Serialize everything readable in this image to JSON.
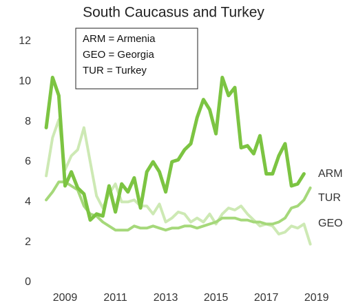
{
  "chart_data": {
    "type": "line",
    "title": "South Caucasus and Turkey",
    "legend_box": [
      "ARM  = Armenia",
      "GEO  = Georgia",
      "TUR  = Turkey"
    ],
    "x": [
      2008.25,
      2008.5,
      2008.75,
      2009,
      2009.25,
      2009.5,
      2009.75,
      2010,
      2010.25,
      2010.5,
      2010.75,
      2011,
      2011.25,
      2011.5,
      2011.75,
      2012,
      2012.25,
      2012.5,
      2012.75,
      2013,
      2013.25,
      2013.5,
      2013.75,
      2014,
      2014.25,
      2014.5,
      2014.75,
      2015,
      2015.25,
      2015.5,
      2015.75,
      2016,
      2016.25,
      2016.5,
      2016.75,
      2017,
      2017.25,
      2017.5,
      2017.75,
      2018,
      2018.25,
      2018.5,
      2018.75
    ],
    "series": [
      {
        "name": "GEO",
        "color": "#cde9b4",
        "values": [
          5.3,
          7.2,
          8.1,
          5.6,
          6.3,
          6.6,
          7.7,
          6.0,
          4.3,
          3.7,
          4.4,
          4.9,
          4.0,
          4.0,
          4.1,
          3.8,
          3.8,
          3.4,
          3.9,
          3.0,
          3.2,
          3.5,
          3.4,
          3.0,
          3.2,
          3.0,
          3.4,
          2.9,
          3.4,
          3.7,
          3.6,
          3.8,
          3.4,
          3.1,
          2.8,
          2.9,
          2.8,
          2.4,
          2.5,
          2.8,
          2.7,
          2.9,
          1.9
        ]
      },
      {
        "name": "TUR",
        "color": "#a5d87a",
        "values": [
          4.1,
          4.5,
          5.0,
          5.0,
          4.8,
          4.6,
          3.8,
          3.4,
          3.3,
          3.0,
          2.8,
          2.6,
          2.6,
          2.6,
          2.8,
          2.7,
          2.7,
          2.8,
          2.7,
          2.6,
          2.7,
          2.7,
          2.8,
          2.8,
          2.7,
          2.8,
          2.9,
          3.0,
          3.2,
          3.2,
          3.2,
          3.1,
          3.1,
          3.0,
          3.0,
          2.9,
          2.9,
          3.0,
          3.2,
          3.7,
          3.8,
          4.1,
          4.7
        ]
      },
      {
        "name": "ARM",
        "color": "#7cc442",
        "values": [
          7.7,
          10.2,
          9.3,
          4.8,
          5.5,
          4.7,
          4.4,
          3.1,
          3.4,
          3.3,
          4.8,
          3.5,
          4.9,
          4.5,
          5.2,
          3.7,
          5.5,
          6.0,
          5.5,
          4.5,
          6.0,
          6.1,
          6.6,
          6.9,
          8.2,
          9.1,
          8.6,
          7.4,
          10.2,
          9.3,
          9.7,
          6.7,
          6.8,
          6.4,
          7.3,
          5.4,
          5.4,
          6.3,
          6.9,
          4.8,
          4.9,
          5.4,
          null
        ]
      }
    ],
    "xlim": [
      2008,
      2019.2
    ],
    "xticks": [
      2009,
      2011,
      2013,
      2015,
      2017,
      2019
    ],
    "ylim": [
      0,
      12
    ],
    "yticks": [
      0,
      2,
      4,
      6,
      8,
      10,
      12
    ],
    "grid": false
  }
}
